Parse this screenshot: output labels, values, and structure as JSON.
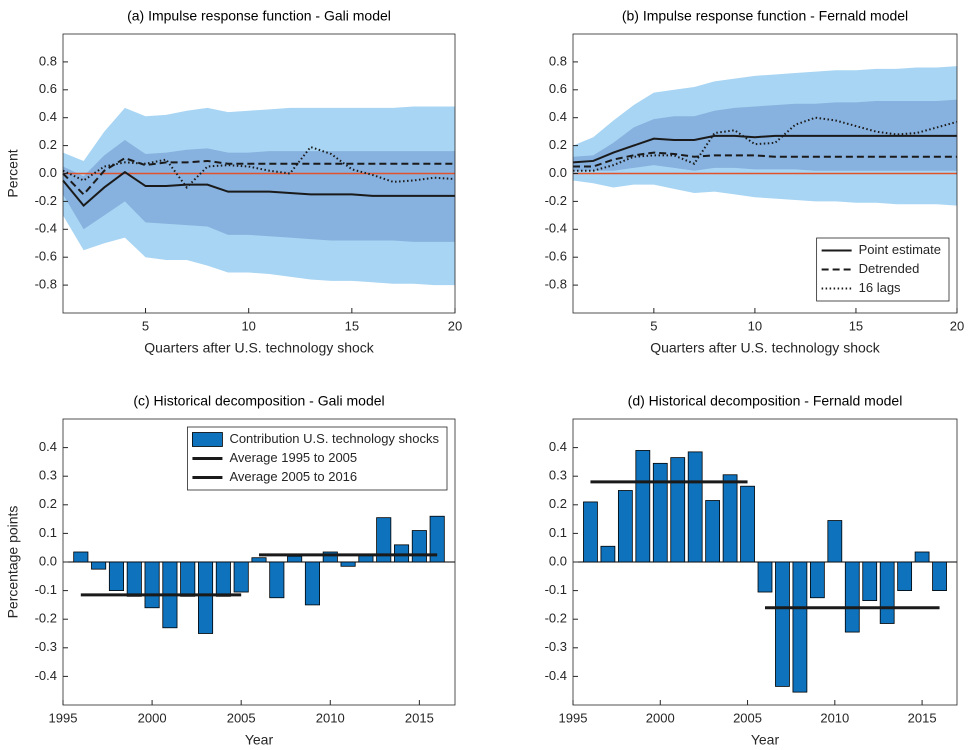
{
  "chart_data": [
    {
      "type": "line",
      "title": "(a) Impulse response function - Gali model",
      "xlabel": "Quarters after U.S. technology shock",
      "ylabel": "Percent",
      "x": [
        1,
        2,
        3,
        4,
        5,
        6,
        7,
        8,
        9,
        10,
        11,
        12,
        13,
        14,
        15,
        16,
        17,
        18,
        19,
        20
      ],
      "xlim": [
        1,
        20
      ],
      "xticks": [
        5,
        10,
        15,
        20
      ],
      "ylim": [
        -1,
        1
      ],
      "yticks": [
        -0.8,
        -0.6,
        -0.4,
        -0.2,
        {
          "value": 0,
          "label": "0.0"
        },
        0.2,
        0.4,
        0.6,
        0.8
      ],
      "bands": [
        {
          "color": "#a8d5f3",
          "upper": [
            0.15,
            0.09,
            0.3,
            0.47,
            0.41,
            0.42,
            0.45,
            0.47,
            0.44,
            0.45,
            0.46,
            0.47,
            0.47,
            0.47,
            0.47,
            0.47,
            0.47,
            0.48,
            0.48,
            0.48
          ],
          "lower": [
            -0.3,
            -0.55,
            -0.5,
            -0.46,
            -0.6,
            -0.62,
            -0.62,
            -0.66,
            -0.71,
            -0.71,
            -0.72,
            -0.74,
            -0.76,
            -0.77,
            -0.77,
            -0.78,
            -0.79,
            -0.79,
            -0.8,
            -0.8
          ]
        },
        {
          "color": "#87b1de",
          "upper": [
            0.05,
            -0.02,
            0.13,
            0.24,
            0.14,
            0.15,
            0.17,
            0.18,
            0.15,
            0.15,
            0.16,
            0.16,
            0.16,
            0.16,
            0.16,
            0.16,
            0.16,
            0.16,
            0.16,
            0.16
          ],
          "lower": [
            -0.15,
            -0.4,
            -0.3,
            -0.2,
            -0.35,
            -0.36,
            -0.37,
            -0.38,
            -0.44,
            -0.44,
            -0.45,
            -0.46,
            -0.47,
            -0.48,
            -0.48,
            -0.48,
            -0.48,
            -0.49,
            -0.49,
            -0.49
          ]
        }
      ],
      "reference_line": {
        "value": 0,
        "color": "#e2532c"
      },
      "series": [
        {
          "color": "#1a1a1a",
          "dash": "solid",
          "values": [
            -0.05,
            -0.23,
            -0.1,
            0.01,
            -0.09,
            -0.09,
            -0.08,
            -0.08,
            -0.13,
            -0.13,
            -0.13,
            -0.14,
            -0.15,
            -0.15,
            -0.15,
            -0.16,
            -0.16,
            -0.16,
            -0.16,
            -0.16
          ]
        },
        {
          "color": "#1a1a1a",
          "dash": "dashed",
          "values": [
            0.0,
            -0.15,
            0.02,
            0.11,
            0.06,
            0.08,
            0.08,
            0.09,
            0.07,
            0.07,
            0.07,
            0.07,
            0.07,
            0.07,
            0.07,
            0.07,
            0.07,
            0.07,
            0.07,
            0.07
          ]
        },
        {
          "color": "#1a1a1a",
          "dash": "dotted",
          "values": [
            0.02,
            -0.05,
            0.05,
            0.08,
            0.07,
            0.1,
            -0.1,
            0.05,
            0.06,
            0.05,
            0.02,
            0.0,
            0.19,
            0.14,
            0.03,
            -0.01,
            -0.06,
            -0.05,
            -0.03,
            -0.04
          ]
        }
      ]
    },
    {
      "type": "line",
      "title": "(b) Impulse response function - Fernald model",
      "xlabel": "Quarters after U.S. technology shock",
      "x": [
        1,
        2,
        3,
        4,
        5,
        6,
        7,
        8,
        9,
        10,
        11,
        12,
        13,
        14,
        15,
        16,
        17,
        18,
        19,
        20
      ],
      "xlim": [
        1,
        20
      ],
      "xticks": [
        5,
        10,
        15,
        20
      ],
      "ylim": [
        -1,
        1
      ],
      "yticks": [
        -0.8,
        -0.6,
        -0.4,
        -0.2,
        {
          "value": 0,
          "label": "0.0"
        },
        0.2,
        0.4,
        0.6,
        0.8
      ],
      "legend": "lower right",
      "bands": [
        {
          "color": "#a8d5f3",
          "upper": [
            0.2,
            0.26,
            0.38,
            0.49,
            0.58,
            0.6,
            0.62,
            0.66,
            0.68,
            0.7,
            0.71,
            0.72,
            0.73,
            0.74,
            0.74,
            0.75,
            0.75,
            0.76,
            0.76,
            0.77
          ],
          "lower": [
            -0.05,
            -0.07,
            -0.1,
            -0.08,
            -0.08,
            -0.11,
            -0.14,
            -0.13,
            -0.15,
            -0.17,
            -0.18,
            -0.19,
            -0.2,
            -0.2,
            -0.21,
            -0.21,
            -0.22,
            -0.22,
            -0.22,
            -0.23
          ]
        },
        {
          "color": "#87b1de",
          "upper": [
            0.12,
            0.13,
            0.22,
            0.33,
            0.39,
            0.41,
            0.41,
            0.45,
            0.47,
            0.48,
            0.49,
            0.5,
            0.5,
            0.51,
            0.51,
            0.52,
            0.52,
            0.52,
            0.52,
            0.53
          ],
          "lower": [
            0.02,
            0.02,
            0.02,
            0.04,
            0.06,
            0.04,
            0.02,
            0.04,
            0.04,
            0.03,
            0.03,
            0.03,
            0.02,
            0.02,
            0.02,
            0.02,
            0.02,
            0.02,
            0.02,
            0.02
          ]
        }
      ],
      "reference_line": {
        "value": 0,
        "color": "#e2532c"
      },
      "series": [
        {
          "name": "Point estimate",
          "color": "#1a1a1a",
          "dash": "solid",
          "values": [
            0.08,
            0.09,
            0.15,
            0.2,
            0.25,
            0.24,
            0.24,
            0.27,
            0.27,
            0.26,
            0.27,
            0.27,
            0.27,
            0.27,
            0.27,
            0.27,
            0.27,
            0.27,
            0.27,
            0.27
          ]
        },
        {
          "name": "Detrended",
          "color": "#1a1a1a",
          "dash": "dashed",
          "values": [
            0.05,
            0.05,
            0.1,
            0.13,
            0.15,
            0.14,
            0.12,
            0.13,
            0.13,
            0.13,
            0.12,
            0.12,
            0.12,
            0.12,
            0.12,
            0.12,
            0.12,
            0.12,
            0.12,
            0.12
          ]
        },
        {
          "name": "16 lags",
          "color": "#1a1a1a",
          "dash": "dotted",
          "values": [
            0.02,
            0.02,
            0.06,
            0.12,
            0.13,
            0.13,
            0.07,
            0.29,
            0.31,
            0.21,
            0.22,
            0.35,
            0.4,
            0.38,
            0.34,
            0.3,
            0.28,
            0.29,
            0.33,
            0.37
          ]
        }
      ]
    },
    {
      "type": "bar",
      "title": "(c) Historical decomposition - Gali model",
      "xlabel": "Year",
      "ylabel": "Percentage points",
      "x": [
        1996,
        1997,
        1998,
        1999,
        2000,
        2001,
        2002,
        2003,
        2004,
        2005,
        2006,
        2007,
        2008,
        2009,
        2010,
        2011,
        2012,
        2013,
        2014,
        2015,
        2016
      ],
      "xlim": [
        1995,
        2017
      ],
      "xticks": [
        1995,
        2000,
        2005,
        2010,
        2015
      ],
      "ylim": [
        -0.5,
        0.5
      ],
      "yticks": [
        -0.4,
        -0.3,
        -0.2,
        -0.1,
        {
          "value": 0,
          "label": "0.0"
        },
        0.1,
        0.2,
        0.3,
        0.4
      ],
      "legend": "upper right",
      "reference_line": {
        "value": 0,
        "color": "#000000"
      },
      "series": [
        {
          "name": "Contribution U.S. technology shocks",
          "type": "bar",
          "color": "#0f72bd",
          "values": [
            0.035,
            -0.025,
            -0.1,
            -0.12,
            -0.16,
            -0.23,
            -0.12,
            -0.25,
            -0.12,
            -0.105,
            0.015,
            -0.125,
            0.02,
            -0.15,
            0.035,
            -0.015,
            0.025,
            0.155,
            0.06,
            0.11,
            0.16
          ]
        },
        {
          "name": "Average 1995 to 2005",
          "type": "line",
          "color": "#1a1a1a",
          "x": [
            1996,
            2005
          ],
          "values": [
            -0.115,
            -0.115
          ]
        },
        {
          "name": "Average 2005 to 2016",
          "type": "line",
          "color": "#1a1a1a",
          "x": [
            2006,
            2016
          ],
          "values": [
            0.025,
            0.025
          ]
        }
      ]
    },
    {
      "type": "bar",
      "title": "(d) Historical decomposition - Fernald model",
      "xlabel": "Year",
      "x": [
        1996,
        1997,
        1998,
        1999,
        2000,
        2001,
        2002,
        2003,
        2004,
        2005,
        2006,
        2007,
        2008,
        2009,
        2010,
        2011,
        2012,
        2013,
        2014,
        2015,
        2016
      ],
      "xlim": [
        1995,
        2017
      ],
      "xticks": [
        1995,
        2000,
        2005,
        2010,
        2015
      ],
      "ylim": [
        -0.5,
        0.5
      ],
      "yticks": [
        -0.4,
        -0.3,
        -0.2,
        -0.1,
        {
          "value": 0,
          "label": "0.0"
        },
        0.1,
        0.2,
        0.3,
        0.4
      ],
      "reference_line": {
        "value": 0,
        "color": "#000000"
      },
      "series": [
        {
          "type": "bar",
          "color": "#0f72bd",
          "values": [
            0.21,
            0.055,
            0.25,
            0.39,
            0.345,
            0.365,
            0.385,
            0.215,
            0.305,
            0.265,
            -0.105,
            -0.435,
            -0.455,
            -0.125,
            0.145,
            -0.245,
            -0.135,
            -0.215,
            -0.1,
            0.035,
            -0.1
          ]
        },
        {
          "type": "line",
          "color": "#1a1a1a",
          "x": [
            1996,
            2005
          ],
          "values": [
            0.28,
            0.28
          ]
        },
        {
          "type": "line",
          "color": "#1a1a1a",
          "x": [
            2006,
            2016
          ],
          "values": [
            -0.16,
            -0.16
          ]
        }
      ]
    }
  ]
}
